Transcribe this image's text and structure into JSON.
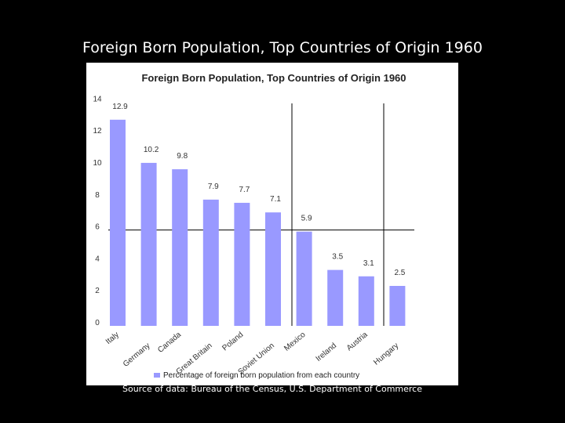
{
  "slide": {
    "title": "Foreign Born Population, Top Countries of Origin 1960",
    "source": "Source of data: Bureau of the Census, U.S. Department of Commerce"
  },
  "chart_data": {
    "type": "bar",
    "title": "Foreign Born Population, Top Countries of Origin 1960",
    "categories": [
      "Italy",
      "Germany",
      "Canada",
      "Great Britain",
      "Poland",
      "Soviet Union",
      "Mexico",
      "Ireland",
      "Austria",
      "Hungary"
    ],
    "series": [
      {
        "name": "Percentage of foreign born population from each country",
        "values": [
          12.9,
          10.2,
          9.8,
          7.9,
          7.7,
          7.1,
          5.9,
          3.5,
          3.1,
          2.5
        ],
        "color": "#9999ff"
      }
    ],
    "value_labels": [
      "12.9",
      "10.2",
      "9.8",
      "7.9",
      "7.7",
      "7.1",
      "5.9",
      "3.5",
      "3.1",
      "2.5"
    ],
    "yticks": [
      "0",
      "2",
      "4",
      "6",
      "8",
      "10",
      "12",
      "14"
    ],
    "ylim": [
      0,
      14
    ],
    "legend_position": "bottom",
    "grid": "horizontal line at 6, vertical dividers after Soviet Union and Austria"
  }
}
